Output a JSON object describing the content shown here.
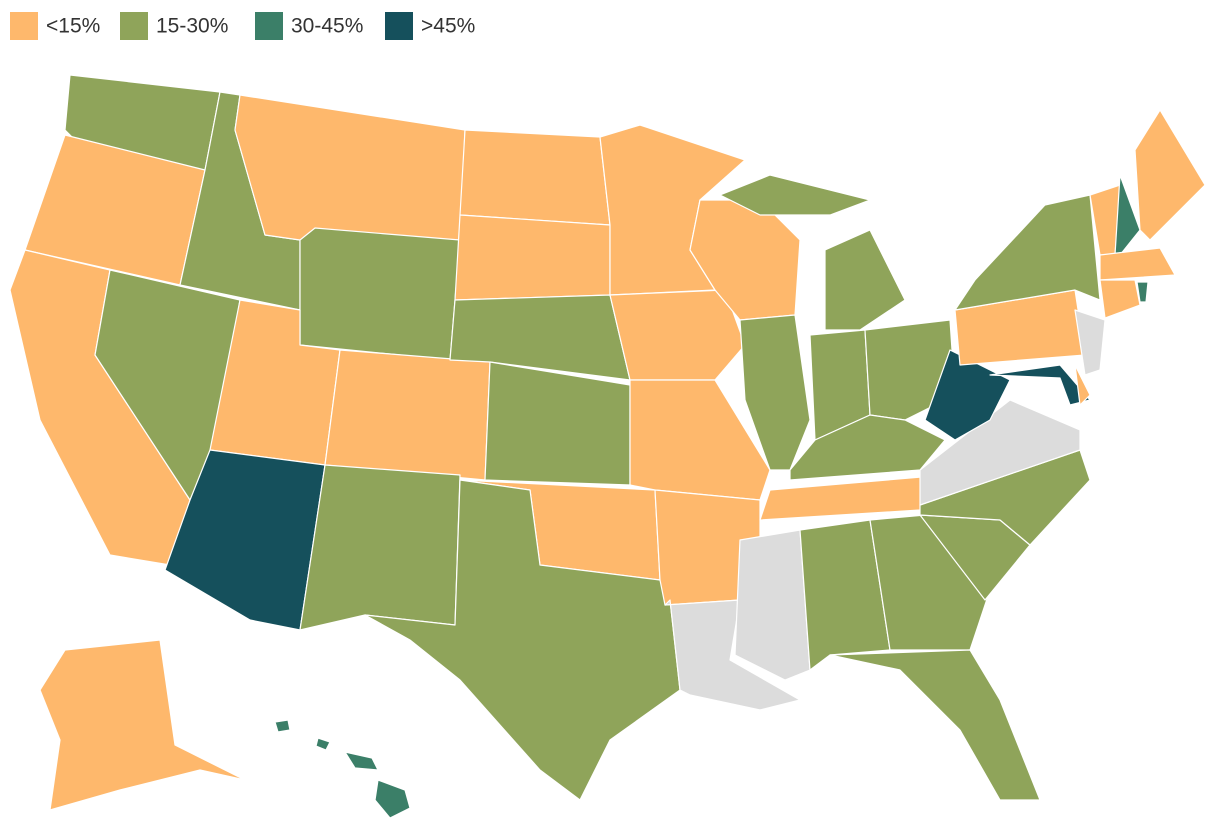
{
  "legend": {
    "items": [
      {
        "label": "<15%",
        "color": "#feb86c"
      },
      {
        "label": "15-30%",
        "color": "#8fa45a"
      },
      {
        "label": "30-45%",
        "color": "#3b7f68"
      },
      {
        "label": ">45%",
        "color": "#15505c"
      }
    ]
  },
  "no_data_color": "#dcdcdc"
}
